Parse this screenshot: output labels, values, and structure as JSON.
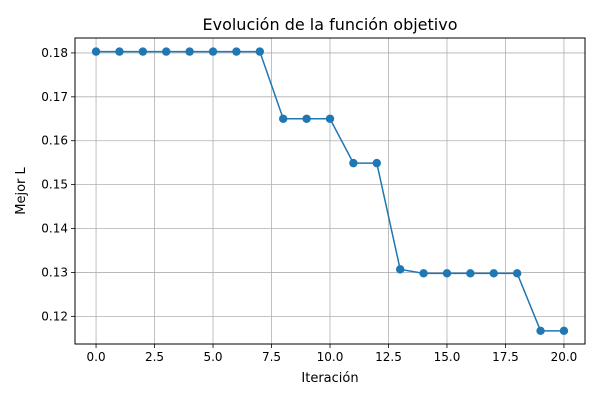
{
  "chart_data": {
    "type": "line",
    "title": "Evolución de la función objetivo",
    "xlabel": "Iteración",
    "ylabel": "Mejor L",
    "xlim": [
      -0.9,
      20.9
    ],
    "ylim": [
      0.1137,
      0.1834
    ],
    "xticks": [
      0.0,
      2.5,
      5.0,
      7.5,
      10.0,
      12.5,
      15.0,
      17.5,
      20.0
    ],
    "xtick_labels": [
      "0.0",
      "2.5",
      "5.0",
      "7.5",
      "10.0",
      "12.5",
      "15.0",
      "17.5",
      "20.0"
    ],
    "yticks": [
      0.12,
      0.13,
      0.14,
      0.15,
      0.16,
      0.17,
      0.18
    ],
    "ytick_labels": [
      "0.12",
      "0.13",
      "0.14",
      "0.15",
      "0.16",
      "0.17",
      "0.18"
    ],
    "grid": true,
    "series": [
      {
        "color": "#1f77b4",
        "marker": "circle",
        "x": [
          0,
          1,
          2,
          3,
          4,
          5,
          6,
          7,
          8,
          9,
          10,
          11,
          12,
          13,
          14,
          15,
          16,
          17,
          18,
          19,
          20
        ],
        "y": [
          0.1803,
          0.1803,
          0.1803,
          0.1803,
          0.1803,
          0.1803,
          0.1803,
          0.1803,
          0.165,
          0.165,
          0.165,
          0.1549,
          0.1549,
          0.1307,
          0.1298,
          0.1298,
          0.1298,
          0.1298,
          0.1298,
          0.1167,
          0.1167
        ]
      }
    ]
  }
}
